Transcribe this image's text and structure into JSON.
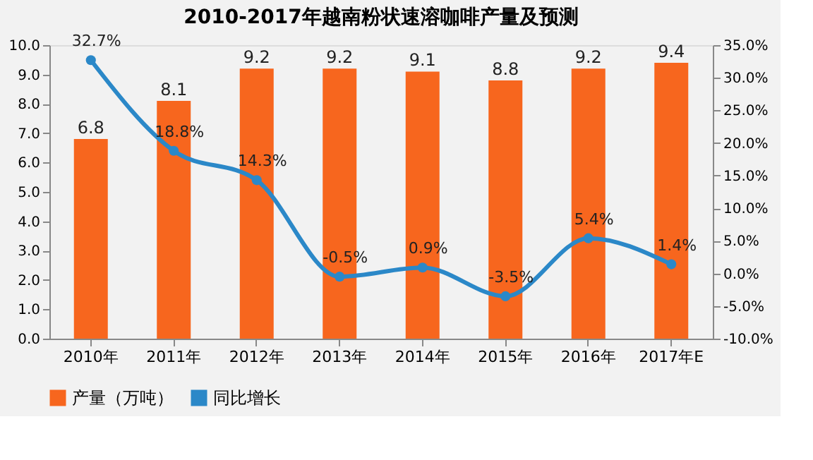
{
  "chart_data": {
    "type": "bar",
    "title": "2010-2017年越南粉状速溶咖啡产量及预测",
    "categories": [
      "2010年",
      "2011年",
      "2012年",
      "2013年",
      "2014年",
      "2015年",
      "2016年",
      "2017年E"
    ],
    "series": [
      {
        "name": "产量（万吨）",
        "color": "#f7661e",
        "values": [
          6.8,
          8.1,
          9.2,
          9.2,
          9.1,
          8.8,
          9.2,
          9.4
        ],
        "value_labels": [
          "6.8",
          "8.1",
          "9.2",
          "9.2",
          "9.1",
          "8.8",
          "9.2",
          "9.4"
        ]
      },
      {
        "name": "同比增长",
        "type": "line",
        "axis": "y2",
        "color": "#2b88c8",
        "marker": "circle",
        "values": [
          32.7,
          18.8,
          14.3,
          -0.5,
          0.9,
          -3.5,
          5.4,
          1.4
        ],
        "value_labels": [
          "32.7%",
          "18.8%",
          "14.3%",
          "-0.5%",
          "0.9%",
          "-3.5%",
          "5.4%",
          "1.4%"
        ]
      }
    ],
    "ylim": [
      0,
      10
    ],
    "yticks": [
      {
        "value": 0,
        "label": "0.0"
      },
      {
        "value": 1,
        "label": "1.0"
      },
      {
        "value": 2,
        "label": "2.0"
      },
      {
        "value": 3,
        "label": "3.0"
      },
      {
        "value": 4,
        "label": "4.0"
      },
      {
        "value": 5,
        "label": "5.0"
      },
      {
        "value": 6,
        "label": "6.0"
      },
      {
        "value": 7,
        "label": "7.0"
      },
      {
        "value": 8,
        "label": "8.0"
      },
      {
        "value": 9,
        "label": "9.0"
      },
      {
        "value": 10,
        "label": "10.0"
      }
    ],
    "y2lim": [
      -10,
      35
    ],
    "y2ticks": [
      {
        "value": -10,
        "label": "-10.0%"
      },
      {
        "value": -5,
        "label": "-5.0%"
      },
      {
        "value": 0,
        "label": "0.0%"
      },
      {
        "value": 5,
        "label": "5.0%"
      },
      {
        "value": 10,
        "label": "10.0%"
      },
      {
        "value": 15,
        "label": "15.0%"
      },
      {
        "value": 20,
        "label": "20.0%"
      },
      {
        "value": 25,
        "label": "25.0%"
      },
      {
        "value": 30,
        "label": "30.0%"
      },
      {
        "value": 35,
        "label": "35.0%"
      }
    ],
    "grid": false,
    "legend": "bottom"
  }
}
